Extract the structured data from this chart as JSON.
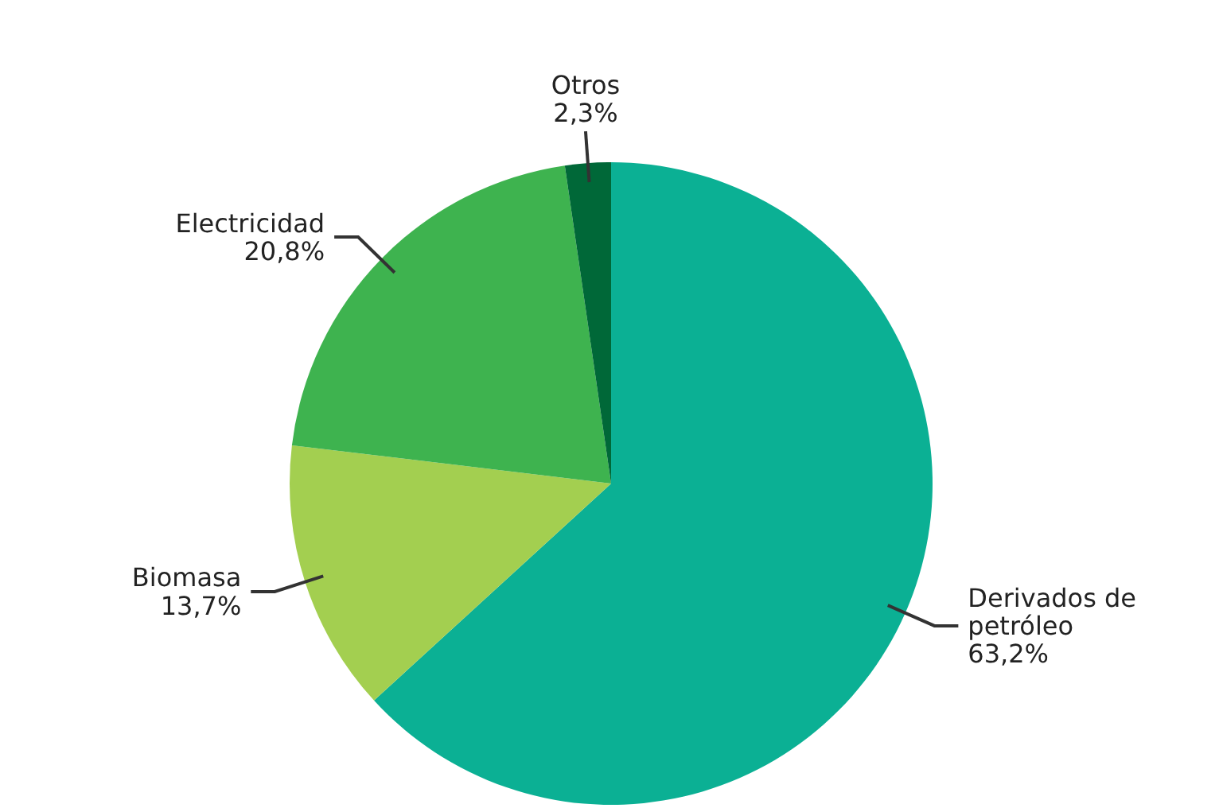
{
  "chart_data": {
    "type": "pie",
    "categories": [
      "Derivados de petróleo",
      "Biomasa",
      "Electricidad",
      "Otros"
    ],
    "values": [
      63.2,
      13.7,
      20.8,
      2.3
    ],
    "value_labels": [
      "63,2%",
      "13,7%",
      "20,8%",
      "2,3%"
    ],
    "colors": [
      "#0bb094",
      "#a3cf50",
      "#3eb34f",
      "#006838"
    ]
  }
}
